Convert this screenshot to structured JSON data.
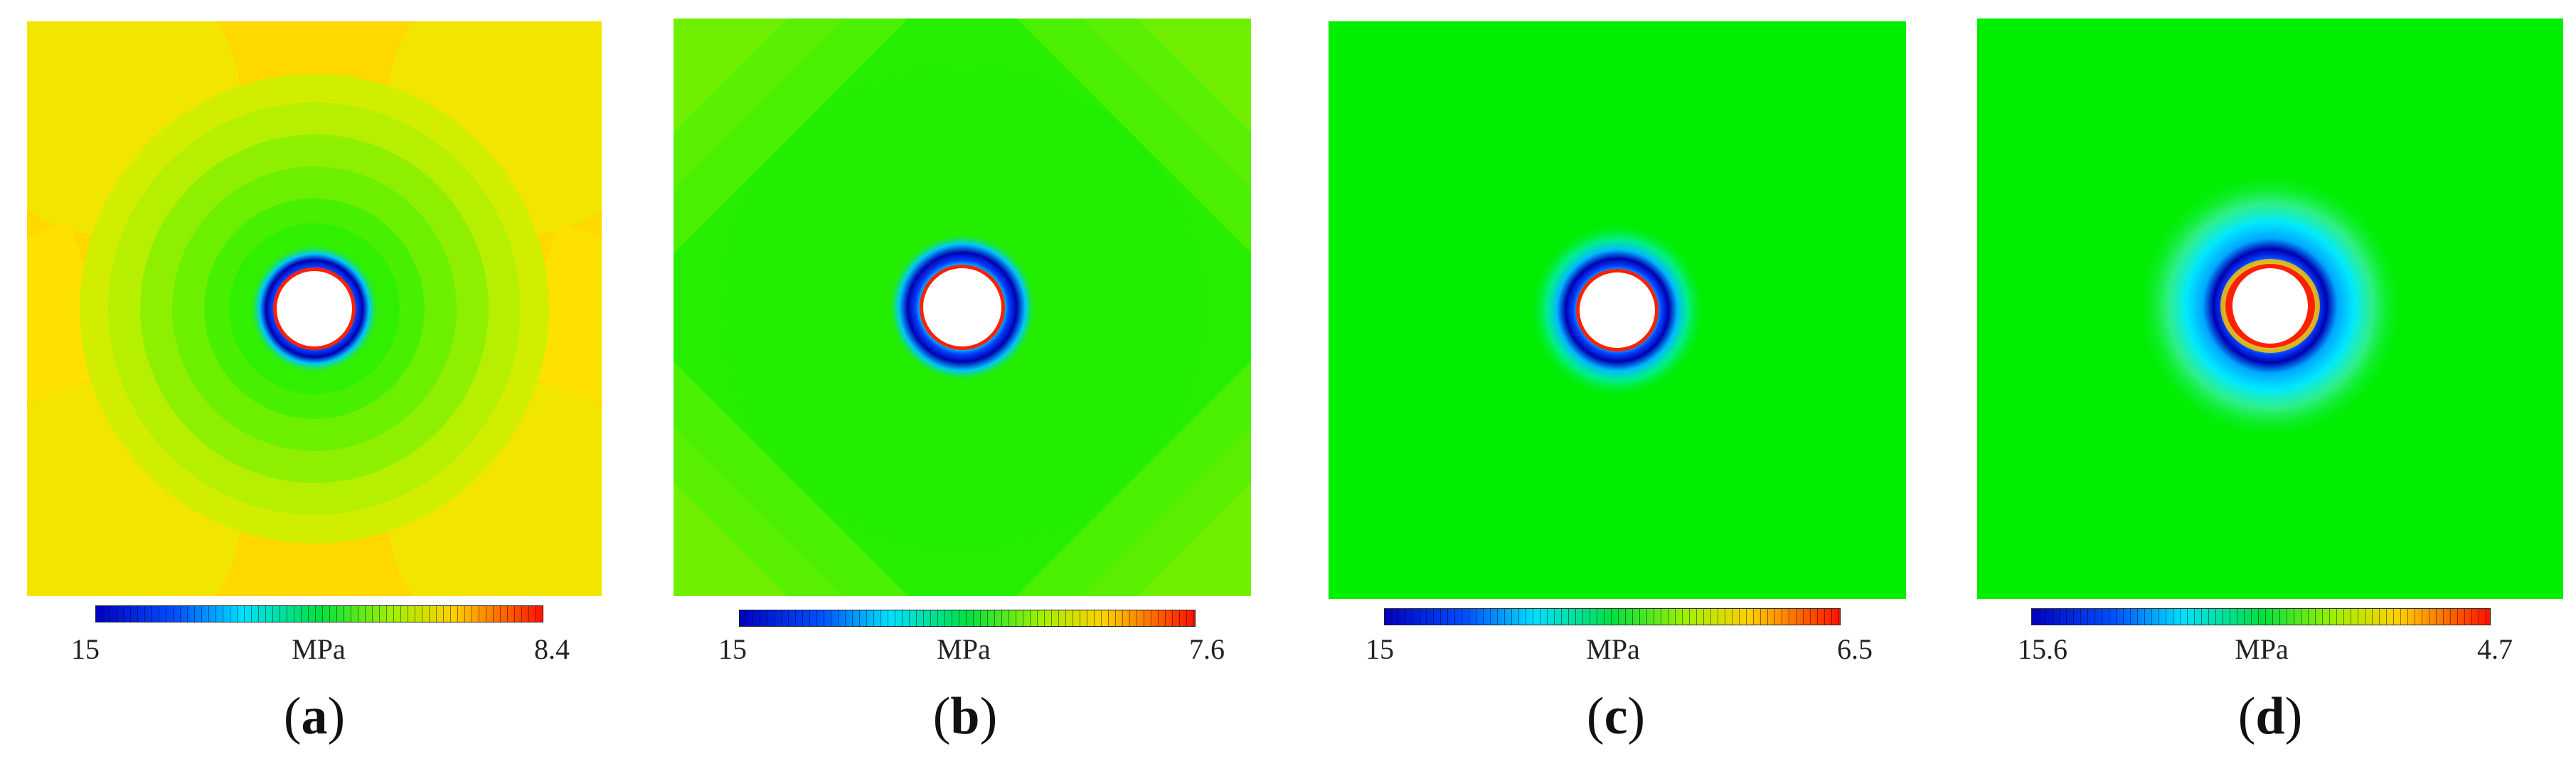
{
  "panels": [
    {
      "id": "a",
      "label_prefix": "(",
      "label_letter": "a",
      "label_suffix": ")",
      "colorbar": {
        "min_label": "15",
        "unit": "MPa",
        "max_label": "8.4"
      },
      "field": {
        "background": "#ffd400",
        "zones": [
          "#ffd400",
          "#f4e600",
          "#d8ee00",
          "#aef000",
          "#7cf000",
          "#5af200",
          "#38f000"
        ],
        "corner_pattern": "four-lobe-light",
        "halo": "narrow"
      }
    },
    {
      "id": "b",
      "label_prefix": "(",
      "label_letter": "b",
      "label_suffix": ")",
      "colorbar": {
        "min_label": "15",
        "unit": "MPa",
        "max_label": "7.6"
      },
      "field": {
        "background": "#1fee00",
        "zones": [
          "#7cf000",
          "#4cf000",
          "#1fee00"
        ],
        "corner_pattern": "diagonal-faint",
        "halo": "narrow"
      }
    },
    {
      "id": "c",
      "label_prefix": "(",
      "label_letter": "c",
      "label_suffix": ")",
      "colorbar": {
        "min_label": "15",
        "unit": "MPa",
        "max_label": "6.5"
      },
      "field": {
        "background": "#00ee00",
        "zones": [
          "#00ee00"
        ],
        "corner_pattern": "none",
        "halo": "medium"
      }
    },
    {
      "id": "d",
      "label_prefix": "(",
      "label_letter": "d",
      "label_suffix": ")",
      "colorbar": {
        "min_label": "15.6",
        "unit": "MPa",
        "max_label": "4.7"
      },
      "field": {
        "background": "#00ee00",
        "zones": [
          "#00ee00"
        ],
        "corner_pattern": "none",
        "halo": "wide"
      }
    }
  ]
}
